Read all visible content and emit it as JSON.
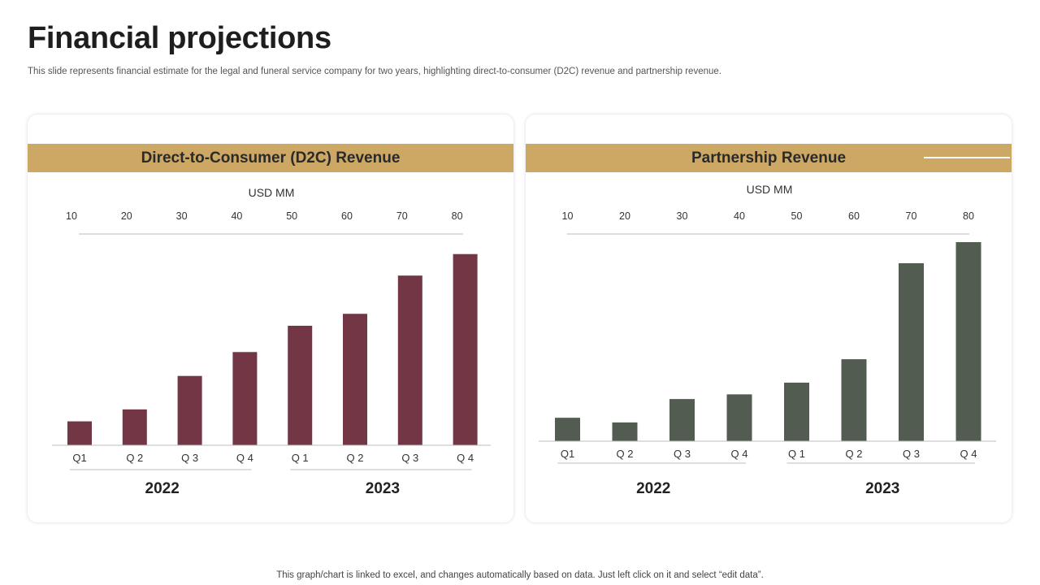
{
  "page": {
    "title": "Financial projections",
    "subtitle": "This slide represents financial estimate for the legal and funeral service company for two years, highlighting direct-to-consumer (D2C) revenue and partnership revenue.",
    "footer": "This graph/chart is linked to excel, and changes automatically based on data. Just left click on it and select “edit data”."
  },
  "colors": {
    "band": "#cda764",
    "d2c_bar": "#733645",
    "partner_bar": "#525c50"
  },
  "chart_data": [
    {
      "type": "bar",
      "title": "Direct-to-Consumer (D2C) Revenue",
      "unit_label": "USD MM",
      "scale_ticks": [
        "10",
        "20",
        "30",
        "40",
        "50",
        "60",
        "70",
        "80"
      ],
      "ylim": [
        0,
        85
      ],
      "categories": [
        "Q1",
        "Q 2",
        "Q 3",
        "Q 4",
        "Q 1",
        "Q 2",
        "Q 3",
        "Q 4"
      ],
      "groups": [
        {
          "label": "2022",
          "start": 0,
          "end": 3
        },
        {
          "label": "2023",
          "start": 4,
          "end": 7
        }
      ],
      "series": [
        {
          "name": "D2C Revenue",
          "values": [
            10,
            15,
            29,
            39,
            50,
            55,
            71,
            80
          ]
        }
      ]
    },
    {
      "type": "bar",
      "title": "Partnership Revenue",
      "unit_label": "USD MM",
      "scale_ticks": [
        "10",
        "20",
        "30",
        "40",
        "50",
        "60",
        "70",
        "80"
      ],
      "ylim": [
        0,
        85
      ],
      "categories": [
        "Q1",
        "Q 2",
        "Q 3",
        "Q 4",
        "Q 1",
        "Q 2",
        "Q 3",
        "Q 4"
      ],
      "groups": [
        {
          "label": "2022",
          "start": 0,
          "end": 3
        },
        {
          "label": "2023",
          "start": 4,
          "end": 7
        }
      ],
      "series": [
        {
          "name": "Partnership Revenue",
          "values": [
            10,
            8,
            18,
            20,
            25,
            35,
            76,
            86
          ]
        }
      ]
    }
  ]
}
